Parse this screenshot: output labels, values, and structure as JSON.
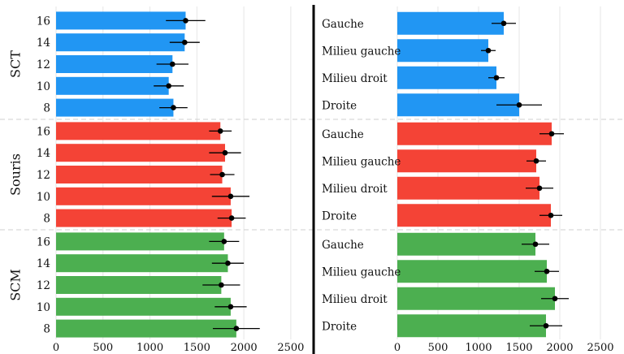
{
  "chart_data": {
    "type": "bar",
    "orientation": "horizontal",
    "xlim": [
      0,
      2700
    ],
    "x_ticks": [
      0,
      500,
      1000,
      1500,
      2000,
      2500
    ],
    "grid": "vertical",
    "colors": {
      "SCT": "#2196f3",
      "Souris": "#f44336",
      "SCM": "#4caf50"
    },
    "panels": [
      {
        "name": "left",
        "groups": [
          {
            "name": "SCT",
            "categories": [
              "16",
              "14",
              "12",
              "10",
              "8"
            ],
            "values": [
              1380,
              1370,
              1240,
              1200,
              1250
            ],
            "error": [
              210,
              160,
              170,
              160,
              150
            ]
          },
          {
            "name": "Souris",
            "categories": [
              "16",
              "14",
              "12",
              "10",
              "8"
            ],
            "values": [
              1750,
              1800,
              1770,
              1860,
              1870
            ],
            "error": [
              120,
              170,
              130,
              200,
              150
            ]
          },
          {
            "name": "SCM",
            "categories": [
              "16",
              "14",
              "12",
              "10",
              "8"
            ],
            "values": [
              1790,
              1830,
              1760,
              1860,
              1920
            ],
            "error": [
              160,
              170,
              200,
              170,
              250
            ]
          }
        ]
      },
      {
        "name": "right",
        "groups": [
          {
            "name": "SCT",
            "categories": [
              "Gauche",
              "Milieu gauche",
              "Milieu droit",
              "Droite"
            ],
            "values": [
              1310,
              1120,
              1220,
              1500
            ],
            "error": [
              150,
              90,
              100,
              280
            ]
          },
          {
            "name": "Souris",
            "categories": [
              "Gauche",
              "Milieu gauche",
              "Milieu droit",
              "Droite"
            ],
            "values": [
              1900,
              1710,
              1750,
              1890
            ],
            "error": [
              150,
              120,
              170,
              140
            ]
          },
          {
            "name": "SCM",
            "categories": [
              "Gauche",
              "Milieu gauche",
              "Milieu droit",
              "Droite"
            ],
            "values": [
              1700,
              1840,
              1940,
              1830
            ],
            "error": [
              170,
              150,
              170,
              200
            ]
          }
        ]
      }
    ]
  }
}
